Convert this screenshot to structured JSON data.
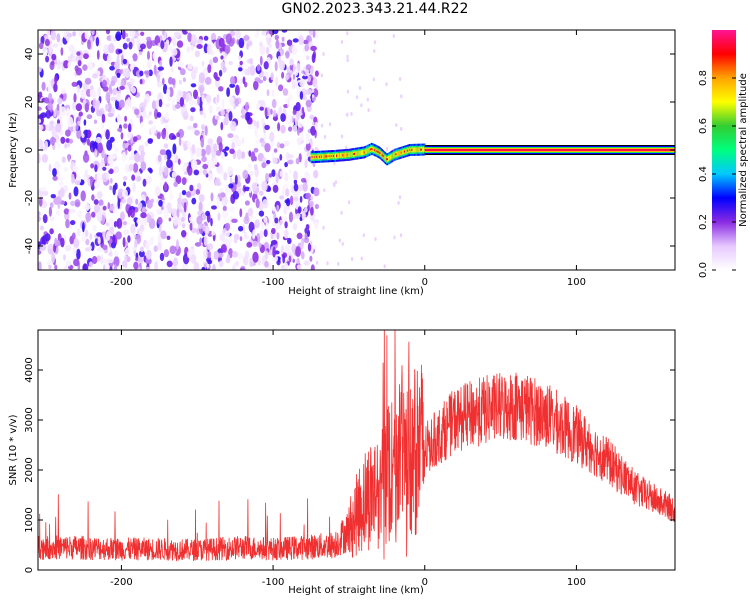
{
  "figure": {
    "title": "GN02.2023.343.21.44.R22"
  },
  "chart_data": [
    {
      "type": "heatmap",
      "xlabel": "Height of straight line (km)",
      "ylabel": "Frequency (Hz)",
      "xlim": [
        -255,
        165
      ],
      "ylim": [
        -50,
        50
      ],
      "xticks": [
        -200,
        -100,
        0,
        100
      ],
      "yticks": [
        -40,
        -20,
        0,
        20,
        40
      ],
      "colorbar": {
        "label": "Normalized spectral amplitude",
        "range": [
          0.0,
          1.0
        ],
        "ticks": [
          0.0,
          0.2,
          0.4,
          0.6,
          0.8
        ],
        "colormap": [
          "#ffffff",
          "#e6c8ff",
          "#8a2be2",
          "#0000ff",
          "#00c8ff",
          "#00ff7f",
          "#32cd32",
          "#ffff00",
          "#ffa500",
          "#ff0000",
          "#ff1493"
        ]
      },
      "regions": [
        {
          "x_range": [
            -255,
            -75
          ],
          "description": "broadband noise",
          "amplitude_range": [
            0.0,
            0.25
          ],
          "freq_range": [
            -50,
            50
          ]
        },
        {
          "x_range": [
            -75,
            0
          ],
          "description": "wandering carrier",
          "amplitude_range": [
            0.2,
            1.0
          ],
          "freq_path": [
            [
              -75,
              -3
            ],
            [
              -60,
              -2.5
            ],
            [
              -50,
              -2
            ],
            [
              -40,
              -1
            ],
            [
              -35,
              0.5
            ],
            [
              -30,
              -1
            ],
            [
              -25,
              -4
            ],
            [
              -20,
              -2
            ],
            [
              -15,
              -1
            ],
            [
              -10,
              0
            ],
            [
              0,
              0.2
            ]
          ]
        },
        {
          "x_range": [
            0,
            165
          ],
          "description": "steady carrier",
          "amplitude_range": [
            0.85,
            1.0
          ],
          "freq": 0
        }
      ]
    },
    {
      "type": "line",
      "xlabel": "Height of straight line (km)",
      "ylabel": "SNR (10 * v/v)",
      "xlim": [
        -255,
        165
      ],
      "ylim": [
        0,
        4800
      ],
      "xticks": [
        -200,
        -100,
        0,
        100
      ],
      "yticks": [
        0,
        1000,
        2000,
        3000,
        4000
      ],
      "color": "#f03030",
      "series": [
        {
          "x": [
            -255,
            -230,
            -200,
            -180,
            -150,
            -120,
            -100,
            -80,
            -60,
            -50,
            -40,
            -30,
            -20,
            -15,
            -10,
            -5,
            0,
            10,
            20,
            40,
            60,
            80,
            100,
            120,
            140,
            165
          ],
          "y": [
            450,
            450,
            420,
            420,
            400,
            450,
            420,
            450,
            500,
            800,
            1400,
            1700,
            2000,
            2200,
            2300,
            2500,
            2400,
            2700,
            3000,
            3200,
            3300,
            3100,
            2700,
            2200,
            1600,
            1200
          ]
        }
      ]
    }
  ]
}
